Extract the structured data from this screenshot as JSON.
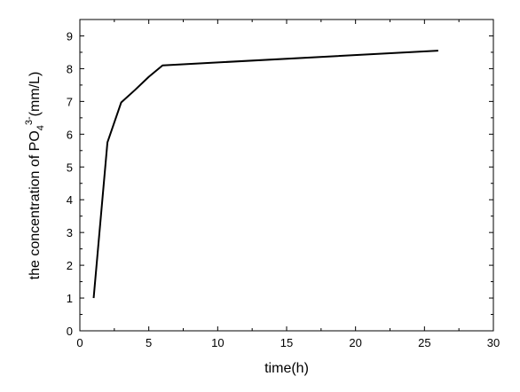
{
  "chart_data": {
    "type": "line",
    "title": "",
    "xlabel": "time(h)",
    "ylabel": {
      "prefix": "the concentration of PO",
      "subscript": "4",
      "superscript": "3-",
      "suffix": "(mm/L)"
    },
    "xlim": [
      0,
      30
    ],
    "ylim": [
      0,
      9.5
    ],
    "xticks": [
      0,
      5,
      10,
      15,
      20,
      25,
      30
    ],
    "yticks": [
      0,
      1,
      2,
      3,
      4,
      5,
      6,
      7,
      8,
      9
    ],
    "grid": false,
    "legend": "none",
    "series": [
      {
        "color": "#000000",
        "x": [
          1,
          2,
          3,
          4,
          5,
          6,
          26
        ],
        "y": [
          1.0,
          5.75,
          6.97,
          7.35,
          7.75,
          8.1,
          8.55
        ]
      }
    ]
  }
}
